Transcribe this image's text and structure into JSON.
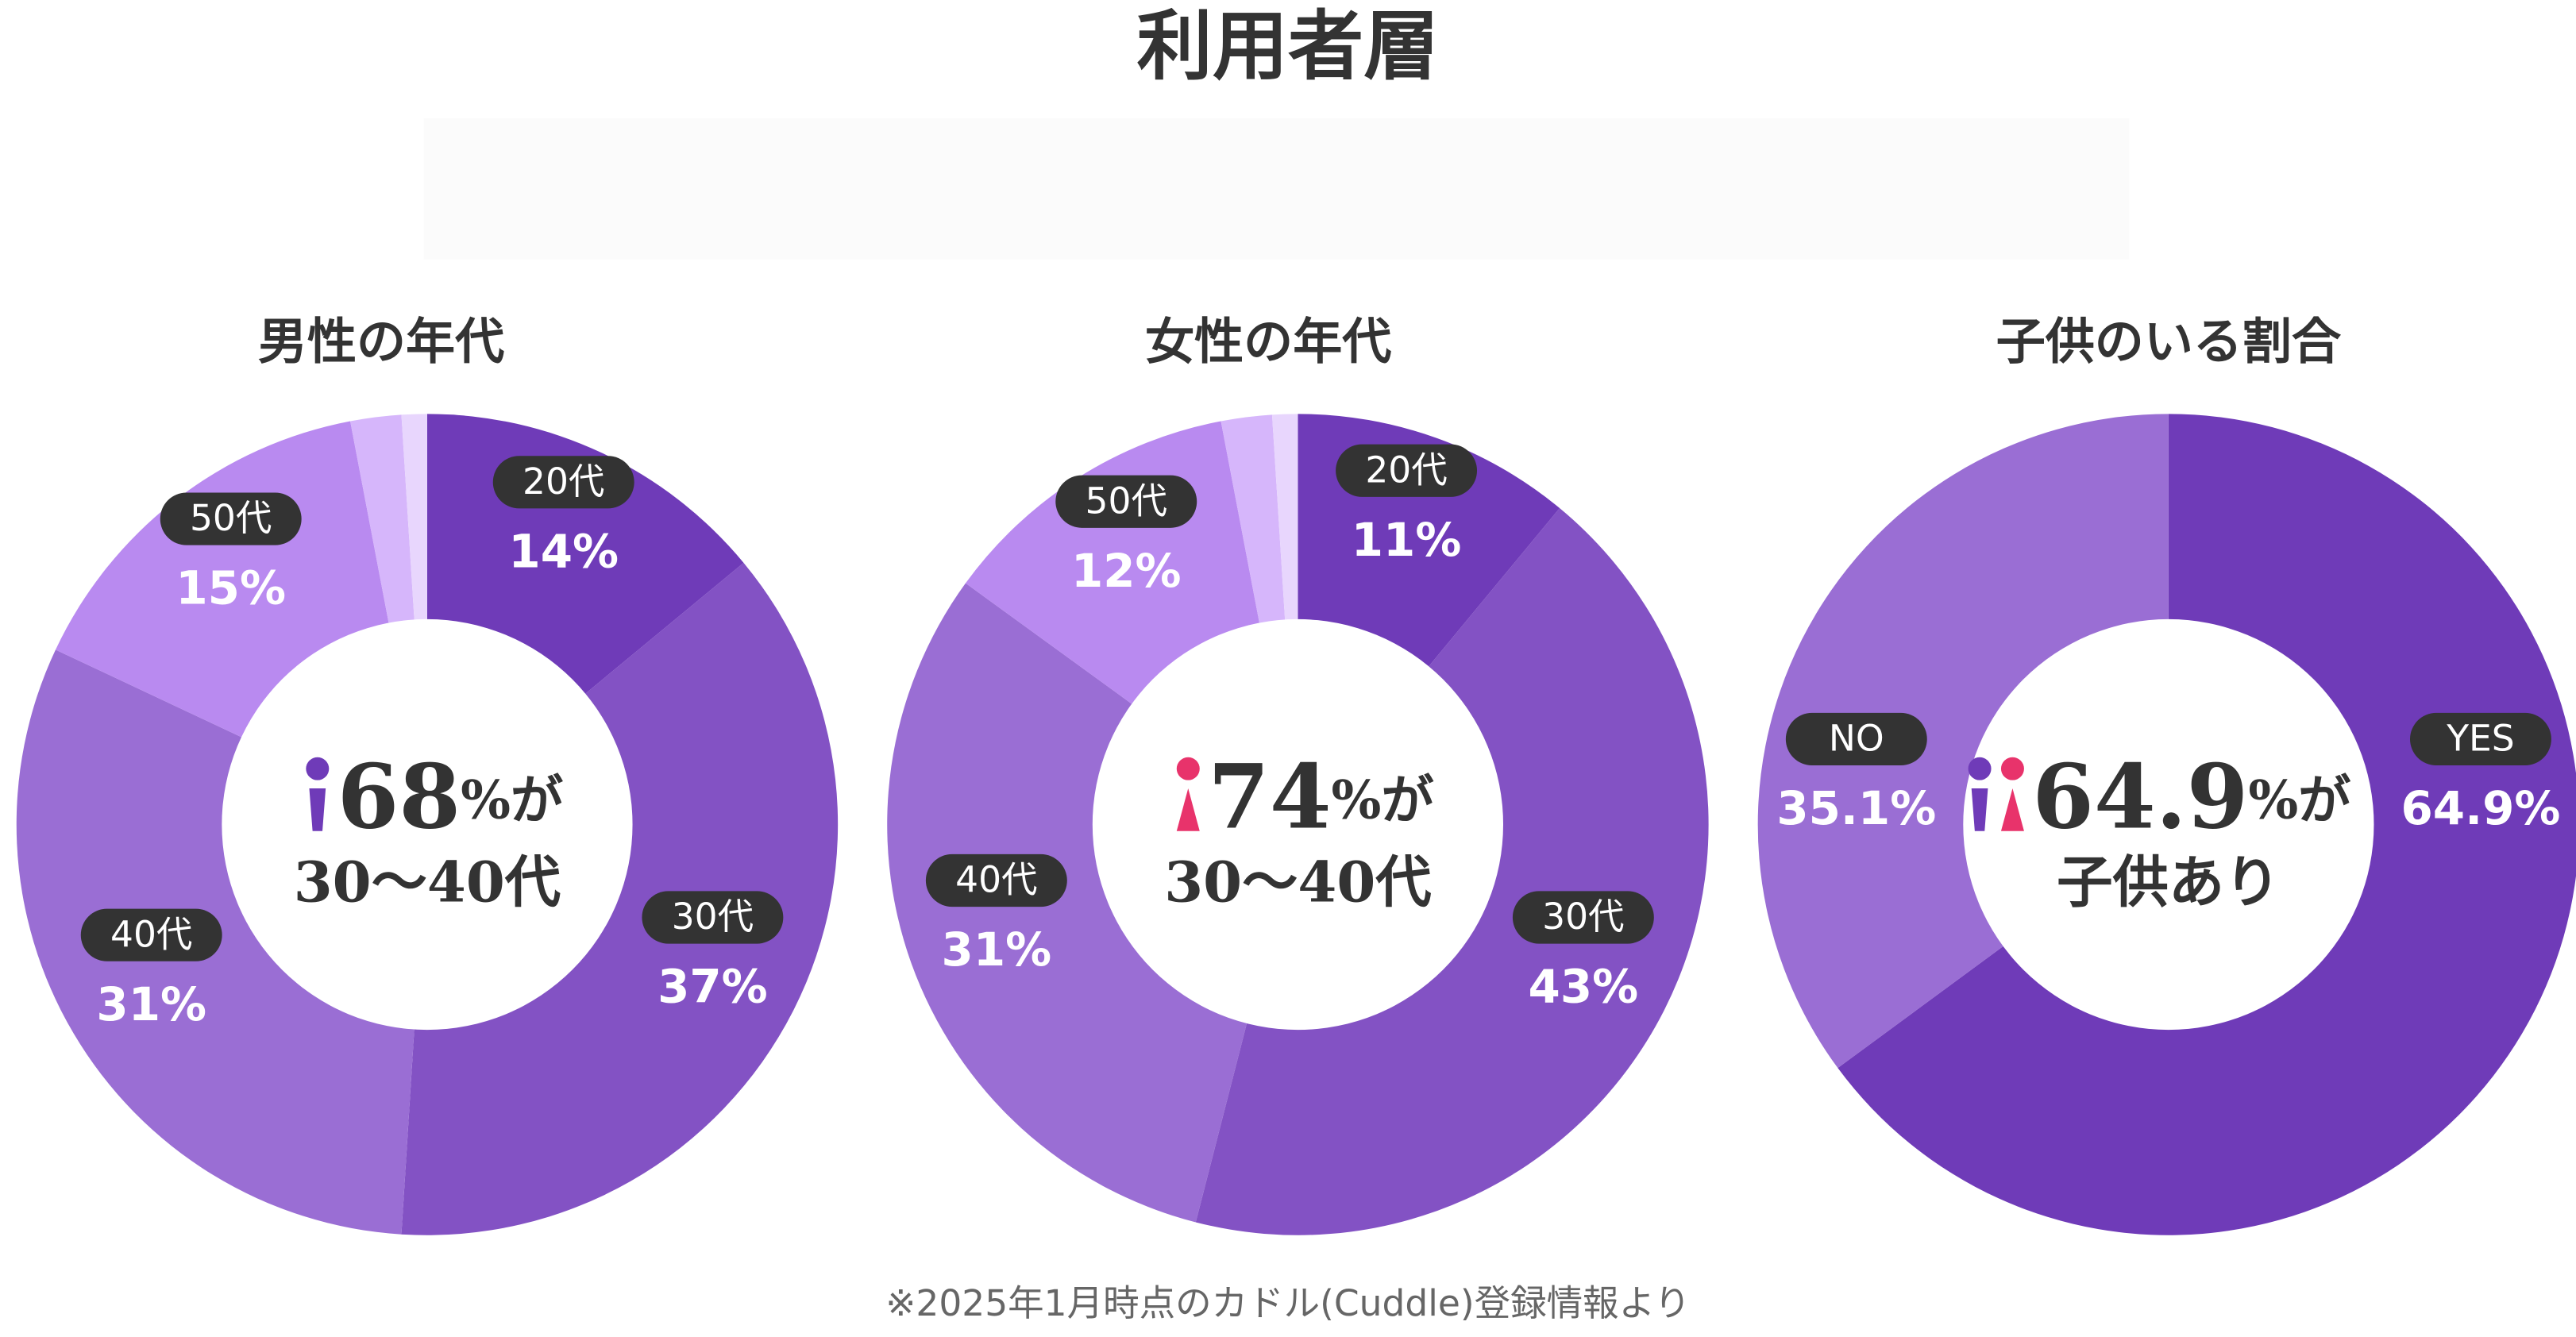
{
  "title": "利用者層",
  "chart_data": [
    {
      "type": "pie",
      "title": "男性の年代",
      "categories": [
        "20代",
        "30代",
        "40代",
        "50代",
        null,
        null
      ],
      "values": [
        14,
        37,
        31,
        15,
        2,
        1
      ],
      "value_labels": [
        "14%",
        "37%",
        "31%",
        "15%",
        null,
        null
      ],
      "colors": [
        "#6f3bb8",
        "#8352c4",
        "#9a6ed4",
        "#b98af0",
        "#d6b6fb",
        "#e8d6fd"
      ],
      "center_value": "68",
      "center_suffix": "%が",
      "center_caption": "30〜40代"
    },
    {
      "type": "pie",
      "title": "女性の年代",
      "categories": [
        "20代",
        "30代",
        "40代",
        "50代",
        null,
        null
      ],
      "values": [
        11,
        43,
        31,
        12,
        2,
        1
      ],
      "value_labels": [
        "11%",
        "43%",
        "31%",
        "12%",
        null,
        null
      ],
      "colors": [
        "#6f3bb8",
        "#8352c4",
        "#9a6ed4",
        "#b98af0",
        "#d6b6fb",
        "#e8d6fd"
      ],
      "center_value": "74",
      "center_suffix": "%が",
      "center_caption": "30〜40代"
    },
    {
      "type": "pie",
      "title": "子供のいる割合",
      "categories": [
        "YES",
        "NO"
      ],
      "values": [
        64.9,
        35.1
      ],
      "value_labels": [
        "64.9%",
        "35.1%"
      ],
      "colors": [
        "#6f3bb8",
        "#9a6ed4"
      ],
      "center_value": "64.9",
      "center_suffix": "%が",
      "center_caption": "子供あり"
    }
  ],
  "footnote": "※2025年1月時点のカドル(Cuddle)登録情報より"
}
